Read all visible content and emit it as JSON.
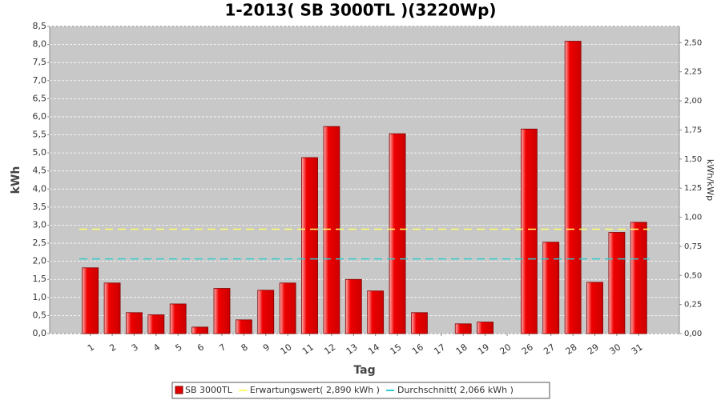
{
  "chart_data": {
    "type": "bar",
    "title": "1-2013( SB 3000TL )(3220Wp)",
    "x_label": "Tag",
    "y_label": "kWh",
    "y2_label": "kWh/kWp",
    "categories": [
      "1",
      "2",
      "3",
      "4",
      "5",
      "6",
      "7",
      "8",
      "9",
      "10",
      "11",
      "12",
      "13",
      "14",
      "15",
      "16",
      "17",
      "18",
      "19",
      "20",
      "26",
      "27",
      "28",
      "29",
      "30",
      "31"
    ],
    "series": [
      {
        "name": "SB 3000TL",
        "color": "#e00000",
        "values": [
          1.82,
          1.4,
          0.58,
          0.52,
          0.82,
          0.18,
          1.25,
          0.38,
          1.2,
          1.4,
          4.87,
          5.73,
          1.5,
          1.18,
          5.53,
          0.58,
          0,
          0.27,
          0.32,
          0,
          5.66,
          2.53,
          8.09,
          1.42,
          2.8,
          3.08
        ]
      }
    ],
    "reference_lines": [
      {
        "name": "Erwartungswert( 2,890 kWh )",
        "color": "#ffff66",
        "value": 2.89
      },
      {
        "name": "Durchschnitt( 2,066 kWh )",
        "color": "#33cccc",
        "value": 2.066
      }
    ],
    "ylim": [
      0,
      8.5
    ],
    "yticks": [
      {
        "value": 0,
        "label": "0,0"
      },
      {
        "value": 0.5,
        "label": "0,5"
      },
      {
        "value": 1,
        "label": "1,0"
      },
      {
        "value": 1.5,
        "label": "1,5"
      },
      {
        "value": 2,
        "label": "2,0"
      },
      {
        "value": 2.5,
        "label": "2,5"
      },
      {
        "value": 3,
        "label": "3,0"
      },
      {
        "value": 3.5,
        "label": "3,5"
      },
      {
        "value": 4,
        "label": "4,0"
      },
      {
        "value": 4.5,
        "label": "4,5"
      },
      {
        "value": 5,
        "label": "5,0"
      },
      {
        "value": 5.5,
        "label": "5,5"
      },
      {
        "value": 6,
        "label": "6,0"
      },
      {
        "value": 6.5,
        "label": "6,5"
      },
      {
        "value": 7,
        "label": "7,0"
      },
      {
        "value": 7.5,
        "label": "7,5"
      },
      {
        "value": 8,
        "label": "8,0"
      },
      {
        "value": 8.5,
        "label": "8,5"
      }
    ],
    "y2lim": [
      0,
      2.64
    ],
    "y2ticks": [
      {
        "value": 0,
        "label": "0,00"
      },
      {
        "value": 0.25,
        "label": "0,25"
      },
      {
        "value": 0.5,
        "label": "0,50"
      },
      {
        "value": 0.75,
        "label": "0,75"
      },
      {
        "value": 1,
        "label": "1,00"
      },
      {
        "value": 1.25,
        "label": "1,25"
      },
      {
        "value": 1.5,
        "label": "1,50"
      },
      {
        "value": 1.75,
        "label": "1,75"
      },
      {
        "value": 2,
        "label": "2,00"
      },
      {
        "value": 2.25,
        "label": "2,25"
      },
      {
        "value": 2.5,
        "label": "2,50"
      }
    ],
    "grid": true,
    "legend": "bottom"
  }
}
